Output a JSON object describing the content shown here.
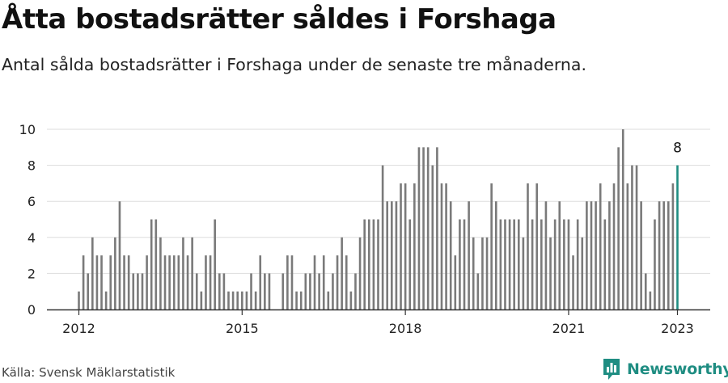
{
  "header": {
    "title": "Åtta bostadsrätter såldes i Forshaga",
    "subtitle": "Antal sålda bostadsrätter i Forshaga under de senaste tre månaderna."
  },
  "footer": {
    "source": "Källa: Svensk Mäklarstatistik",
    "brand": "Newsworthy"
  },
  "colors": {
    "bar": "#7a7a7a",
    "highlight": "#1f8d82",
    "grid": "#dddddd",
    "axis": "#333333"
  },
  "chart_data": {
    "type": "bar",
    "x_start": "2012-01",
    "x_end": "2023-01",
    "x_ticks": [
      "2012",
      "2015",
      "2018",
      "2021",
      "2023"
    ],
    "y_ticks": [
      "0",
      "2",
      "4",
      "6",
      "8",
      "10"
    ],
    "ylim": [
      0,
      10
    ],
    "grid": true,
    "xlabel": "",
    "ylabel": "",
    "values": [
      1,
      3,
      2,
      4,
      3,
      3,
      1,
      3,
      4,
      6,
      3,
      3,
      2,
      2,
      2,
      3,
      5,
      5,
      4,
      3,
      3,
      3,
      3,
      4,
      3,
      4,
      2,
      1,
      3,
      3,
      5,
      2,
      2,
      1,
      1,
      1,
      1,
      1,
      2,
      1,
      3,
      2,
      2,
      null,
      null,
      2,
      3,
      3,
      1,
      1,
      2,
      2,
      3,
      2,
      3,
      1,
      2,
      3,
      4,
      3,
      1,
      2,
      4,
      5,
      5,
      5,
      5,
      8,
      6,
      6,
      6,
      7,
      7,
      5,
      7,
      9,
      9,
      9,
      8,
      9,
      7,
      7,
      6,
      3,
      5,
      5,
      6,
      4,
      2,
      4,
      4,
      7,
      6,
      5,
      5,
      5,
      5,
      5,
      4,
      7,
      5,
      7,
      5,
      6,
      4,
      5,
      6,
      5,
      5,
      3,
      5,
      4,
      6,
      6,
      6,
      7,
      5,
      6,
      7,
      9,
      10,
      7,
      8,
      8,
      6,
      2,
      1,
      5,
      6,
      6,
      6,
      7,
      8
    ],
    "highlight_label": "8"
  }
}
